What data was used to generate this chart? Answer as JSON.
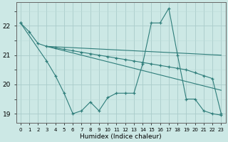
{
  "xlabel": "Humidex (Indice chaleur)",
  "bg_color": "#cce8e5",
  "line_color": "#2e7d7a",
  "grid_color_major": "#aaccca",
  "grid_color_minor": "#bbdad8",
  "xlim": [
    -0.5,
    23.5
  ],
  "ylim": [
    18.7,
    22.8
  ],
  "yticks": [
    19,
    20,
    21,
    22
  ],
  "xticks": [
    0,
    1,
    2,
    3,
    4,
    5,
    6,
    7,
    8,
    9,
    10,
    11,
    12,
    13,
    14,
    15,
    16,
    17,
    18,
    19,
    20,
    21,
    22,
    23
  ],
  "lines": [
    {
      "x": [
        0,
        1,
        2,
        3,
        4,
        5,
        6,
        7,
        8,
        9,
        10,
        11,
        12,
        13,
        14,
        15,
        16,
        17,
        18,
        19,
        20,
        21,
        22,
        23
      ],
      "y": [
        22.1,
        21.8,
        21.4,
        21.3,
        21.25,
        21.2,
        21.15,
        21.1,
        21.05,
        21.0,
        20.95,
        20.9,
        20.85,
        20.8,
        20.75,
        20.7,
        20.65,
        20.6,
        20.55,
        20.5,
        20.4,
        20.3,
        20.2,
        19.0
      ],
      "has_markers": true
    },
    {
      "x": [
        0,
        3,
        4,
        5,
        6,
        7,
        8,
        9,
        10,
        11,
        12,
        13,
        14,
        15,
        16,
        17,
        18,
        19,
        20,
        21,
        22,
        23
      ],
      "y": [
        22.1,
        20.8,
        20.3,
        19.7,
        19.0,
        19.1,
        19.4,
        19.1,
        19.55,
        19.7,
        19.7,
        19.7,
        20.7,
        22.1,
        22.1,
        22.6,
        21.0,
        19.5,
        19.5,
        19.1,
        19.0,
        18.95
      ],
      "has_markers": true
    },
    {
      "x": [
        3,
        23
      ],
      "y": [
        21.3,
        21.0
      ],
      "has_markers": false
    },
    {
      "x": [
        3,
        23
      ],
      "y": [
        21.3,
        19.8
      ],
      "has_markers": false
    }
  ]
}
